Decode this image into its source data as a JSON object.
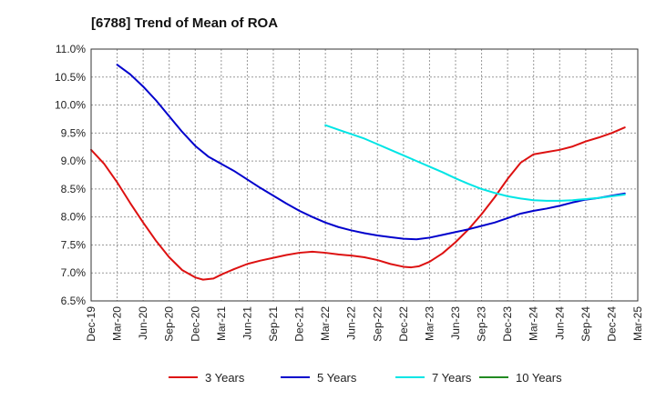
{
  "chart_data": {
    "type": "line",
    "title": "[6788]  Trend of Mean of ROA",
    "xlabel": "",
    "ylabel": "",
    "ylim": [
      6.5,
      11.0
    ],
    "yticks": [
      6.5,
      7.0,
      7.5,
      8.0,
      8.5,
      9.0,
      9.5,
      10.0,
      10.5,
      11.0
    ],
    "ytick_labels": [
      "6.5%",
      "7.0%",
      "7.5%",
      "8.0%",
      "8.5%",
      "9.0%",
      "9.5%",
      "10.0%",
      "10.5%",
      "11.0%"
    ],
    "x_categories": [
      "Dec-19",
      "Mar-20",
      "Jun-20",
      "Sep-20",
      "Dec-20",
      "Mar-21",
      "Jun-21",
      "Sep-21",
      "Dec-21",
      "Mar-22",
      "Jun-22",
      "Sep-22",
      "Dec-22",
      "Mar-23",
      "Jun-23",
      "Sep-23",
      "Dec-23",
      "Mar-24",
      "Jun-24",
      "Sep-24",
      "Dec-24",
      "Mar-25"
    ],
    "grid": true,
    "legend_position": "bottom",
    "series": [
      {
        "name": "3 Years",
        "color": "#dd1111",
        "points": [
          [
            0,
            9.2
          ],
          [
            0.5,
            8.95
          ],
          [
            1,
            8.62
          ],
          [
            1.5,
            8.25
          ],
          [
            2,
            7.9
          ],
          [
            2.5,
            7.57
          ],
          [
            3,
            7.28
          ],
          [
            3.5,
            7.05
          ],
          [
            4,
            6.92
          ],
          [
            4.3,
            6.88
          ],
          [
            4.7,
            6.9
          ],
          [
            5,
            6.97
          ],
          [
            5.5,
            7.07
          ],
          [
            6,
            7.16
          ],
          [
            6.5,
            7.22
          ],
          [
            7,
            7.27
          ],
          [
            7.5,
            7.32
          ],
          [
            8,
            7.36
          ],
          [
            8.5,
            7.38
          ],
          [
            9,
            7.36
          ],
          [
            9.5,
            7.33
          ],
          [
            10,
            7.31
          ],
          [
            10.5,
            7.28
          ],
          [
            11,
            7.23
          ],
          [
            11.5,
            7.16
          ],
          [
            12,
            7.11
          ],
          [
            12.3,
            7.1
          ],
          [
            12.6,
            7.12
          ],
          [
            13,
            7.2
          ],
          [
            13.5,
            7.35
          ],
          [
            14,
            7.55
          ],
          [
            14.5,
            7.78
          ],
          [
            15,
            8.05
          ],
          [
            15.5,
            8.35
          ],
          [
            16,
            8.68
          ],
          [
            16.5,
            8.97
          ],
          [
            17,
            9.12
          ],
          [
            17.5,
            9.16
          ],
          [
            18,
            9.2
          ],
          [
            18.5,
            9.26
          ],
          [
            19,
            9.35
          ],
          [
            19.5,
            9.42
          ],
          [
            20,
            9.5
          ],
          [
            20.5,
            9.6
          ]
        ]
      },
      {
        "name": "5 Years",
        "color": "#0000cc",
        "points": [
          [
            1,
            10.72
          ],
          [
            1.5,
            10.55
          ],
          [
            2,
            10.33
          ],
          [
            2.5,
            10.08
          ],
          [
            3,
            9.8
          ],
          [
            3.5,
            9.52
          ],
          [
            4,
            9.27
          ],
          [
            4.5,
            9.08
          ],
          [
            5,
            8.95
          ],
          [
            5.5,
            8.82
          ],
          [
            6,
            8.67
          ],
          [
            6.5,
            8.52
          ],
          [
            7,
            8.38
          ],
          [
            7.5,
            8.24
          ],
          [
            8,
            8.11
          ],
          [
            8.5,
            8.0
          ],
          [
            9,
            7.9
          ],
          [
            9.5,
            7.82
          ],
          [
            10,
            7.76
          ],
          [
            10.5,
            7.71
          ],
          [
            11,
            7.67
          ],
          [
            11.5,
            7.64
          ],
          [
            12,
            7.61
          ],
          [
            12.5,
            7.6
          ],
          [
            13,
            7.63
          ],
          [
            13.5,
            7.68
          ],
          [
            14,
            7.73
          ],
          [
            14.5,
            7.78
          ],
          [
            15,
            7.84
          ],
          [
            15.5,
            7.9
          ],
          [
            16,
            7.98
          ],
          [
            16.5,
            8.06
          ],
          [
            17,
            8.11
          ],
          [
            17.5,
            8.15
          ],
          [
            18,
            8.2
          ],
          [
            18.5,
            8.26
          ],
          [
            19,
            8.31
          ],
          [
            19.5,
            8.34
          ],
          [
            20,
            8.38
          ],
          [
            20.5,
            8.42
          ]
        ]
      },
      {
        "name": "7 Years",
        "color": "#00e5e5",
        "points": [
          [
            9,
            9.64
          ],
          [
            9.5,
            9.56
          ],
          [
            10,
            9.48
          ],
          [
            10.5,
            9.4
          ],
          [
            11,
            9.3
          ],
          [
            11.5,
            9.2
          ],
          [
            12,
            9.1
          ],
          [
            12.5,
            9.0
          ],
          [
            13,
            8.9
          ],
          [
            13.5,
            8.8
          ],
          [
            14,
            8.69
          ],
          [
            14.5,
            8.59
          ],
          [
            15,
            8.5
          ],
          [
            15.5,
            8.43
          ],
          [
            16,
            8.37
          ],
          [
            16.5,
            8.33
          ],
          [
            17,
            8.3
          ],
          [
            17.5,
            8.29
          ],
          [
            18,
            8.29
          ],
          [
            18.5,
            8.3
          ],
          [
            19,
            8.32
          ],
          [
            19.5,
            8.34
          ],
          [
            20,
            8.37
          ],
          [
            20.5,
            8.4
          ]
        ]
      },
      {
        "name": "10 Years",
        "color": "#228b22",
        "points": []
      }
    ]
  }
}
